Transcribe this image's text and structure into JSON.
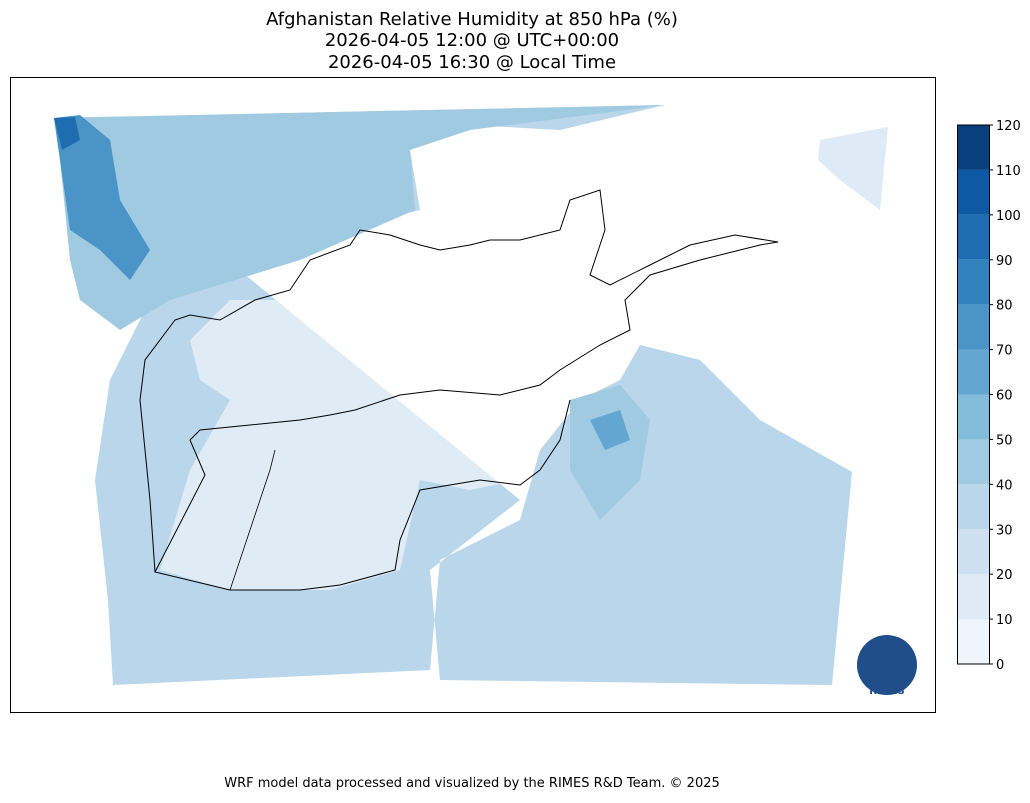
{
  "title": [
    "Afghanistan Relative Humidity at 850 hPa (%)",
    "2026-04-05 12:00 @ UTC+00:00",
    "2026-04-05 16:30 @ Local Time"
  ],
  "colorbar": {
    "ticks": [
      0,
      10,
      20,
      30,
      40,
      50,
      60,
      70,
      80,
      90,
      100,
      110,
      120
    ],
    "colors": [
      "#eef5fc",
      "#deebf7",
      "#cde0f1",
      "#b9d6ea",
      "#9fcae1",
      "#83bbdb",
      "#63a6d1",
      "#4a94c7",
      "#3282be",
      "#1f6db1",
      "#0f58a3",
      "#0a3f7d"
    ]
  },
  "logo": "RIMES",
  "footer": "WRF model data processed and visualized by the RIMES R&D Team. © 2025"
}
